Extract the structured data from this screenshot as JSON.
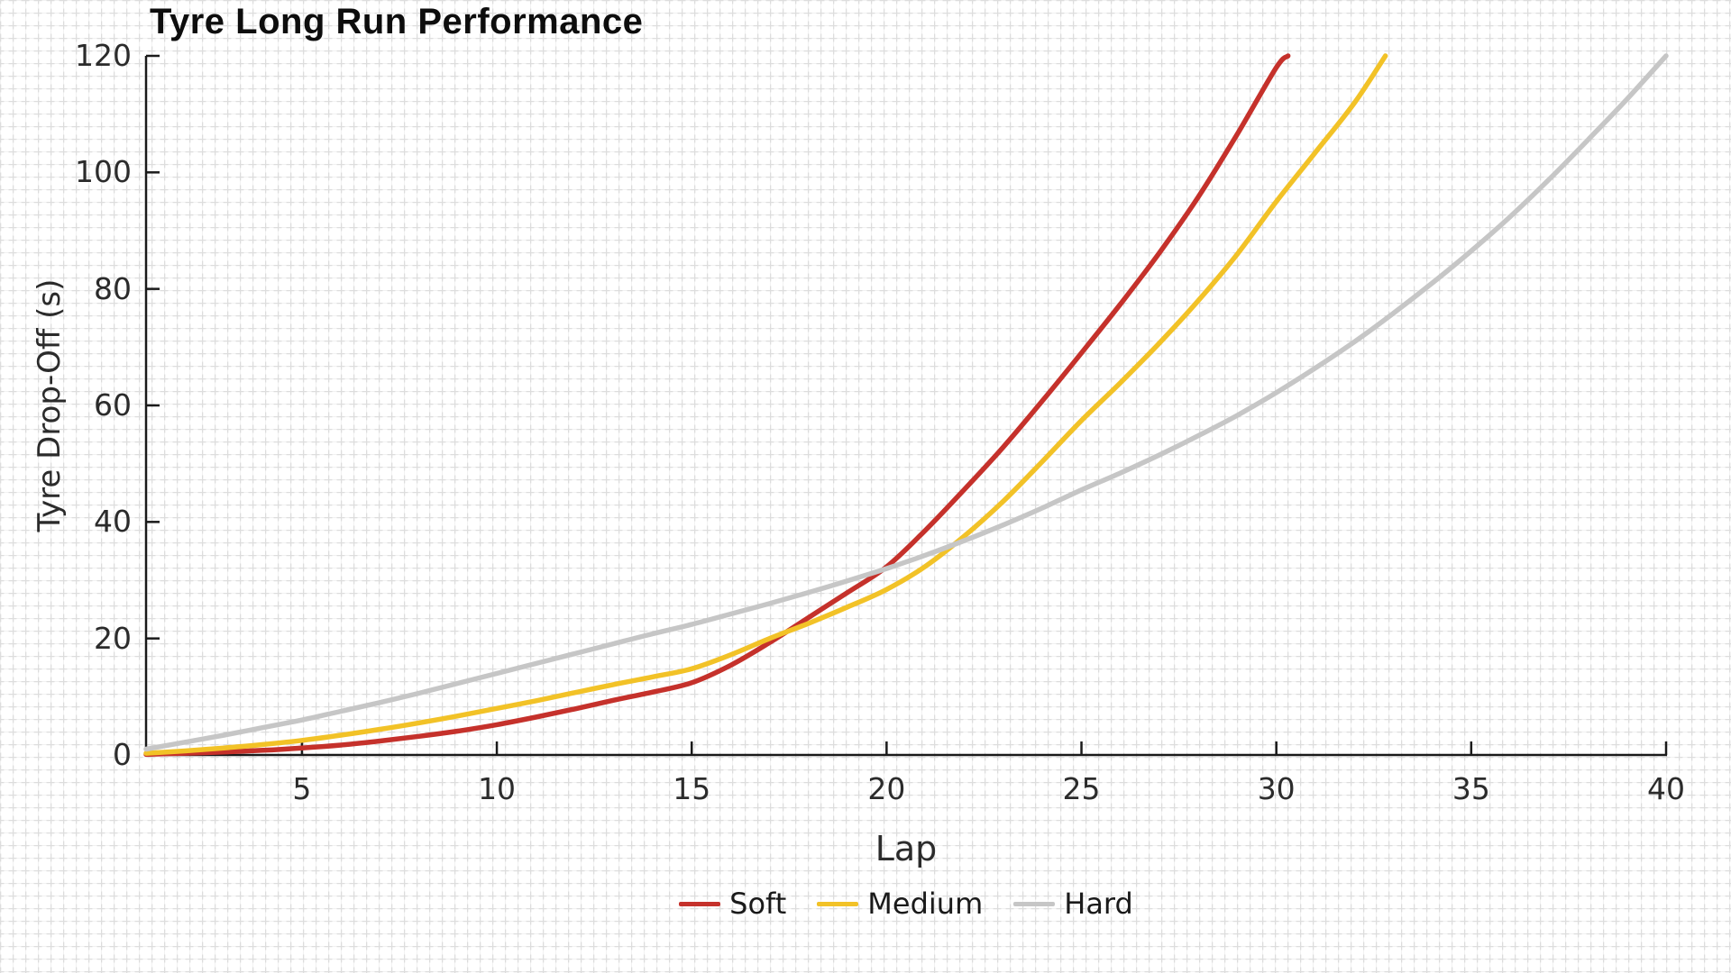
{
  "title": "Tyre Long Run Performance",
  "axes": {
    "x": {
      "label": "Lap",
      "min": 1,
      "max": 40,
      "ticks": [
        5,
        10,
        15,
        20,
        25,
        30,
        35,
        40
      ]
    },
    "y": {
      "label": "Tyre Drop-Off (s)",
      "min": 0,
      "max": 120,
      "ticks": [
        0,
        20,
        40,
        60,
        80,
        100,
        120
      ]
    }
  },
  "legend": [
    {
      "label": "Soft",
      "color": "#c5312b"
    },
    {
      "label": "Medium",
      "color": "#f2c227"
    },
    {
      "label": "Hard",
      "color": "#c6c6c6"
    }
  ],
  "colors": {
    "soft": "#c5312b",
    "medium": "#f2c227",
    "hard": "#c6c6c6",
    "axis": "#1a1a1a",
    "grid_cross": "#dddddd",
    "grid_faint": "#f2f2f2",
    "background": "#ffffff"
  },
  "chart_data": {
    "type": "line",
    "title": "Tyre Long Run Performance",
    "xlabel": "Lap",
    "ylabel": "Tyre Drop-Off (s)",
    "xlim": [
      1,
      40
    ],
    "ylim": [
      0,
      120
    ],
    "grid": "graph-paper background pattern over whole figure",
    "legend_position": "bottom-center",
    "series": [
      {
        "name": "Soft",
        "color": "#c5312b",
        "points": [
          [
            1,
            0.1
          ],
          [
            2,
            0.3
          ],
          [
            3,
            0.5
          ],
          [
            4,
            0.8
          ],
          [
            5,
            1.2
          ],
          [
            6,
            1.7
          ],
          [
            7,
            2.4
          ],
          [
            8,
            3.2
          ],
          [
            9,
            4.1
          ],
          [
            10,
            5.2
          ],
          [
            11,
            6.5
          ],
          [
            12,
            7.9
          ],
          [
            13,
            9.4
          ],
          [
            14,
            10.8
          ],
          [
            15,
            12.4
          ],
          [
            16,
            15.4
          ],
          [
            17,
            19.3
          ],
          [
            18,
            23.6
          ],
          [
            19,
            27.9
          ],
          [
            20,
            32.3
          ],
          [
            21,
            38.6
          ],
          [
            22,
            45.6
          ],
          [
            23,
            52.9
          ],
          [
            24,
            60.8
          ],
          [
            25,
            69.0
          ],
          [
            26,
            77.4
          ],
          [
            27,
            86.2
          ],
          [
            28,
            95.8
          ],
          [
            29,
            106.6
          ],
          [
            30,
            118.0
          ],
          [
            30.3,
            120.0
          ]
        ]
      },
      {
        "name": "Medium",
        "color": "#f2c227",
        "points": [
          [
            1,
            0.3
          ],
          [
            2,
            0.7
          ],
          [
            3,
            1.2
          ],
          [
            4,
            1.8
          ],
          [
            5,
            2.5
          ],
          [
            6,
            3.4
          ],
          [
            7,
            4.4
          ],
          [
            8,
            5.5
          ],
          [
            9,
            6.7
          ],
          [
            10,
            8.0
          ],
          [
            11,
            9.3
          ],
          [
            12,
            10.7
          ],
          [
            13,
            12.1
          ],
          [
            14,
            13.4
          ],
          [
            15,
            14.8
          ],
          [
            16,
            17.2
          ],
          [
            17,
            20.0
          ],
          [
            18,
            22.6
          ],
          [
            19,
            25.4
          ],
          [
            20,
            28.4
          ],
          [
            21,
            32.4
          ],
          [
            22,
            37.6
          ],
          [
            23,
            43.6
          ],
          [
            24,
            50.4
          ],
          [
            25,
            57.4
          ],
          [
            26,
            63.9
          ],
          [
            27,
            70.7
          ],
          [
            28,
            78.0
          ],
          [
            29,
            86.0
          ],
          [
            30,
            95.0
          ],
          [
            31,
            103.4
          ],
          [
            32,
            111.9
          ],
          [
            32.8,
            120.0
          ]
        ]
      },
      {
        "name": "Hard",
        "color": "#c6c6c6",
        "points": [
          [
            1,
            1.0
          ],
          [
            2,
            2.2
          ],
          [
            3,
            3.4
          ],
          [
            4,
            4.7
          ],
          [
            5,
            6.0
          ],
          [
            6,
            7.5
          ],
          [
            7,
            9.0
          ],
          [
            8,
            10.6
          ],
          [
            9,
            12.3
          ],
          [
            10,
            14.0
          ],
          [
            11,
            15.7
          ],
          [
            12,
            17.4
          ],
          [
            13,
            19.1
          ],
          [
            14,
            20.8
          ],
          [
            15,
            22.4
          ],
          [
            16,
            24.2
          ],
          [
            17,
            26.0
          ],
          [
            18,
            27.9
          ],
          [
            19,
            29.9
          ],
          [
            20,
            32.0
          ],
          [
            21,
            34.3
          ],
          [
            22,
            36.8
          ],
          [
            23,
            39.5
          ],
          [
            24,
            42.4
          ],
          [
            25,
            45.5
          ],
          [
            26,
            48.4
          ],
          [
            27,
            51.5
          ],
          [
            28,
            54.8
          ],
          [
            29,
            58.3
          ],
          [
            30,
            62.2
          ],
          [
            31,
            66.4
          ],
          [
            32,
            70.9
          ],
          [
            33,
            75.8
          ],
          [
            34,
            81.0
          ],
          [
            35,
            86.5
          ],
          [
            36,
            92.4
          ],
          [
            37,
            98.8
          ],
          [
            38,
            105.6
          ],
          [
            39,
            112.6
          ],
          [
            40,
            120.0
          ]
        ]
      }
    ]
  }
}
